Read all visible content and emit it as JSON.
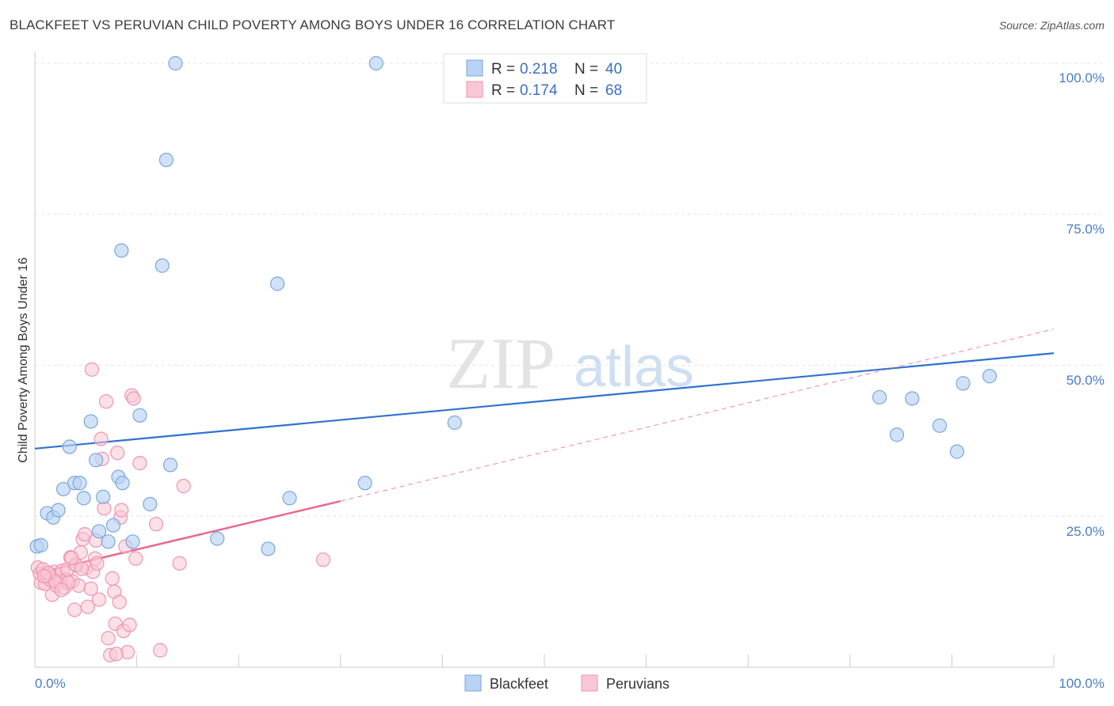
{
  "title": "BLACKFEET VS PERUVIAN CHILD POVERTY AMONG BOYS UNDER 16 CORRELATION CHART",
  "source": "Source: ZipAtlas.com",
  "watermark": {
    "zip": "ZIP",
    "atlas": "atlas"
  },
  "colors": {
    "blackfeet_fill": "#b8d3f3",
    "blackfeet_stroke": "#7aa6de",
    "blackfeet_line": "#2f72cf",
    "peruvians_fill": "#f9c6d5",
    "peruvians_stroke": "#ee94b1",
    "peruvians_line": "#e8688f",
    "tick_label": "#4a7cc7",
    "grid": "#e4e4e4"
  },
  "legend": {
    "rows": [
      {
        "r_label": "R =",
        "r_value": "0.218",
        "n_label": "N =",
        "n_value": "40"
      },
      {
        "r_label": "R =",
        "r_value": "0.174",
        "n_label": "N =",
        "n_value": "68"
      }
    ]
  },
  "bottom_legend": [
    "Blackfeet",
    "Peruvians"
  ],
  "chart_data": {
    "type": "scatter",
    "title": "BLACKFEET VS PERUVIAN CHILD POVERTY AMONG BOYS UNDER 16 CORRELATION CHART",
    "xlabel": "",
    "ylabel": "Child Poverty Among Boys Under 16",
    "xlim": [
      0,
      100
    ],
    "ylim": [
      0,
      100
    ],
    "x_tick_labels": [
      "0.0%",
      "100.0%"
    ],
    "y_tick_labels": [
      "100.0%",
      "75.0%",
      "50.0%",
      "25.0%"
    ],
    "y_tick_values": [
      100,
      75,
      50,
      25
    ],
    "grid": true,
    "legend_position": "top-center",
    "series": [
      {
        "name": "Blackfeet",
        "r": 0.218,
        "n": 40,
        "trend": {
          "x0": 0,
          "y0": 36.2,
          "x1": 100,
          "y1": 52.0,
          "style": "solid"
        },
        "points": [
          [
            0.2,
            20.0
          ],
          [
            0.6,
            20.2
          ],
          [
            1.2,
            25.5
          ],
          [
            1.8,
            24.8
          ],
          [
            2.3,
            26.0
          ],
          [
            2.8,
            29.5
          ],
          [
            3.4,
            36.5
          ],
          [
            3.9,
            30.5
          ],
          [
            4.4,
            30.5
          ],
          [
            4.8,
            28.0
          ],
          [
            5.5,
            40.7
          ],
          [
            6.0,
            34.3
          ],
          [
            6.3,
            22.5
          ],
          [
            6.7,
            28.2
          ],
          [
            7.2,
            20.8
          ],
          [
            7.7,
            23.5
          ],
          [
            8.2,
            31.5
          ],
          [
            8.6,
            30.5
          ],
          [
            9.6,
            20.8
          ],
          [
            10.3,
            41.7
          ],
          [
            11.3,
            27.0
          ],
          [
            12.5,
            66.5
          ],
          [
            12.9,
            84.0
          ],
          [
            13.3,
            33.5
          ],
          [
            13.8,
            100.0
          ],
          [
            17.9,
            21.3
          ],
          [
            22.9,
            19.6
          ],
          [
            23.8,
            63.5
          ],
          [
            25.0,
            28.0
          ],
          [
            32.4,
            30.5
          ],
          [
            33.5,
            100.0
          ],
          [
            41.2,
            40.5
          ],
          [
            82.9,
            44.7
          ],
          [
            84.6,
            38.5
          ],
          [
            86.1,
            44.5
          ],
          [
            88.8,
            40.0
          ],
          [
            90.5,
            35.7
          ],
          [
            91.1,
            47.0
          ],
          [
            93.7,
            48.2
          ],
          [
            8.5,
            69.0
          ]
        ]
      },
      {
        "name": "Peruvians",
        "r": 0.174,
        "n": 68,
        "trend": {
          "x0": 0,
          "y0": 15.5,
          "x1": 30,
          "y1": 27.5,
          "style": "solid",
          "extended_to": {
            "x": 100,
            "y": 56.0,
            "style": "dashed"
          }
        },
        "points": [
          [
            0.3,
            16.5
          ],
          [
            0.5,
            15.5
          ],
          [
            0.6,
            14.0
          ],
          [
            0.8,
            16.2
          ],
          [
            1.0,
            13.8
          ],
          [
            1.2,
            15.0
          ],
          [
            1.5,
            14.5
          ],
          [
            1.7,
            12.0
          ],
          [
            1.9,
            15.8
          ],
          [
            2.1,
            13.5
          ],
          [
            2.3,
            15.2
          ],
          [
            2.5,
            14.0
          ],
          [
            2.7,
            16.0
          ],
          [
            2.9,
            13.2
          ],
          [
            3.1,
            14.5
          ],
          [
            3.2,
            16.2
          ],
          [
            3.5,
            18.2
          ],
          [
            3.7,
            14.2
          ],
          [
            3.9,
            9.5
          ],
          [
            4.1,
            16.8
          ],
          [
            4.3,
            13.5
          ],
          [
            4.5,
            19.0
          ],
          [
            4.7,
            21.2
          ],
          [
            4.9,
            22.0
          ],
          [
            5.1,
            16.5
          ],
          [
            5.2,
            10.0
          ],
          [
            5.5,
            13.0
          ],
          [
            5.7,
            15.8
          ],
          [
            5.9,
            18.0
          ],
          [
            6.1,
            17.2
          ],
          [
            6.3,
            11.2
          ],
          [
            6.5,
            37.8
          ],
          [
            6.6,
            34.5
          ],
          [
            6.8,
            26.3
          ],
          [
            7.0,
            44.0
          ],
          [
            7.2,
            4.8
          ],
          [
            7.4,
            2.0
          ],
          [
            7.6,
            14.7
          ],
          [
            7.8,
            12.5
          ],
          [
            7.9,
            7.2
          ],
          [
            8.1,
            35.5
          ],
          [
            8.3,
            10.8
          ],
          [
            8.4,
            24.8
          ],
          [
            8.5,
            26.0
          ],
          [
            8.7,
            6.0
          ],
          [
            8.9,
            20.0
          ],
          [
            9.1,
            2.5
          ],
          [
            9.3,
            7.0
          ],
          [
            9.5,
            45.0
          ],
          [
            9.7,
            44.5
          ],
          [
            9.9,
            18.0
          ],
          [
            10.3,
            33.8
          ],
          [
            11.9,
            23.7
          ],
          [
            12.3,
            2.8
          ],
          [
            14.2,
            17.2
          ],
          [
            14.6,
            30.0
          ],
          [
            28.3,
            17.8
          ],
          [
            5.6,
            49.3
          ],
          [
            8.0,
            2.2
          ],
          [
            2.0,
            14.2
          ],
          [
            1.3,
            15.6
          ],
          [
            3.3,
            14.0
          ],
          [
            4.0,
            17.0
          ],
          [
            6.0,
            21.0
          ],
          [
            2.6,
            12.8
          ],
          [
            0.9,
            15.1
          ],
          [
            4.6,
            16.3
          ],
          [
            3.6,
            18.1
          ]
        ]
      }
    ]
  }
}
